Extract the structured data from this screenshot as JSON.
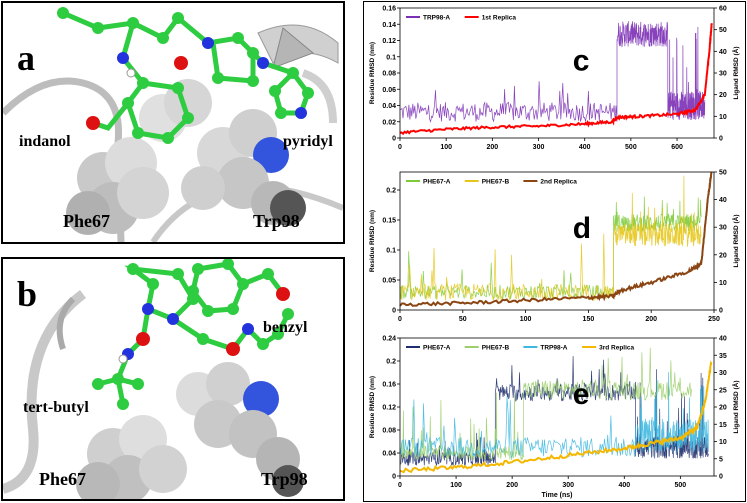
{
  "panels": {
    "a": {
      "letter": "a",
      "labels": {
        "indanol": "indanol",
        "pyridyl": "pyridyl",
        "phe": "Phe67",
        "trp": "Trp98"
      }
    },
    "b": {
      "letter": "b",
      "labels": {
        "benzyl": "benzyl",
        "tert_butyl": "tert-butyl",
        "phe": "Phe67",
        "trp": "Trp98"
      }
    }
  },
  "colors": {
    "carbon": "#2ecc40",
    "oxygen": "#dd1111",
    "nitrogen": "#2233dd",
    "ribbon": "#c8c8c8",
    "sphere": "#d9d9d9"
  },
  "chart_data": [
    {
      "type": "line",
      "panel_letter": "c",
      "x_ticks": [
        0,
        100,
        200,
        300,
        400,
        500,
        600
      ],
      "xlim": [
        0,
        680
      ],
      "xlabel": "",
      "ylabel": "Residue RMSD (nm)",
      "ylim": [
        0,
        0.16
      ],
      "y_ticks": [
        "0",
        "0.02",
        "0.04",
        "0.06",
        "0.08",
        "0.1",
        "0.12",
        "0.14",
        "0.16"
      ],
      "ylabel_right": "Ligand RMSD (Å)",
      "ylim_right": [
        0,
        60
      ],
      "y_ticks_right": [
        "0",
        "10",
        "20",
        "30",
        "40",
        "50",
        "60"
      ],
      "legend_position": "top-left",
      "series": [
        {
          "name": "TRP98-A",
          "axis": "left",
          "color": "#7b2fb5",
          "segments": [
            {
              "x": [
                0,
                470
              ],
              "base": 0.032,
              "amp": 0.012,
              "spikes": 0.02
            },
            {
              "x": [
                470,
                580
              ],
              "base": 0.128,
              "amp": 0.016,
              "spikes": 0.0
            },
            {
              "x": [
                580,
                660
              ],
              "base": 0.04,
              "amp": 0.018,
              "spikes": 0.05
            }
          ]
        },
        {
          "name": "1st Replica",
          "axis": "right",
          "color": "#ff0000",
          "points": [
            [
              0,
              2.5
            ],
            [
              100,
              4
            ],
            [
              200,
              5
            ],
            [
              300,
              5.5
            ],
            [
              400,
              6.5
            ],
            [
              460,
              7.5
            ],
            [
              470,
              9.5
            ],
            [
              520,
              10
            ],
            [
              600,
              11
            ],
            [
              640,
              13
            ],
            [
              660,
              20
            ],
            [
              670,
              40
            ],
            [
              675,
              53
            ]
          ]
        }
      ]
    },
    {
      "type": "line",
      "panel_letter": "d",
      "x_ticks": [
        0,
        50,
        100,
        150,
        200,
        250
      ],
      "xlim": [
        0,
        250
      ],
      "xlabel": "",
      "ylabel": "Residue RMSD (nm)",
      "ylim": [
        0,
        0.23
      ],
      "y_ticks": [
        "0",
        "0.05",
        "0.1",
        "0.15",
        "0.2"
      ],
      "ylabel_right": "Ligand RMSD (Å)",
      "ylim_right": [
        0,
        50
      ],
      "y_ticks_right": [
        "0",
        "10",
        "20",
        "30",
        "40",
        "50"
      ],
      "legend_position": "top-left",
      "series": [
        {
          "name": "PHE67-A",
          "axis": "left",
          "color": "#7ecb3a",
          "segments": [
            {
              "x": [
                0,
                170
              ],
              "base": 0.03,
              "amp": 0.012,
              "spikes": 0.03
            },
            {
              "x": [
                170,
                240
              ],
              "base": 0.145,
              "amp": 0.015,
              "spikes": 0.02
            }
          ]
        },
        {
          "name": "PHE67-B",
          "axis": "left",
          "color": "#e6c619",
          "segments": [
            {
              "x": [
                0,
                170
              ],
              "base": 0.03,
              "amp": 0.014,
              "spikes": 0.05
            },
            {
              "x": [
                170,
                240
              ],
              "base": 0.125,
              "amp": 0.02,
              "spikes": 0.04
            }
          ]
        },
        {
          "name": "2nd Replica",
          "axis": "right",
          "color": "#8b4513",
          "points": [
            [
              0,
              2
            ],
            [
              50,
              2.5
            ],
            [
              100,
              3.5
            ],
            [
              150,
              4.5
            ],
            [
              170,
              5
            ],
            [
              175,
              7
            ],
            [
              200,
              10
            ],
            [
              230,
              14
            ],
            [
              240,
              17
            ],
            [
              245,
              40
            ],
            [
              248,
              50
            ]
          ]
        }
      ]
    },
    {
      "type": "line",
      "panel_letter": "e",
      "x_ticks": [
        0,
        100,
        200,
        300,
        400,
        500
      ],
      "xlim": [
        0,
        560
      ],
      "xlabel": "Time (ns)",
      "ylabel": "Residue RMSD (nm)",
      "ylim": [
        0,
        0.24
      ],
      "y_ticks": [
        "0",
        "0.04",
        "0.08",
        "0.12",
        "0.16",
        "0.2",
        "0.24"
      ],
      "ylabel_right": "Ligand RMSD (Å)",
      "ylim_right": [
        0,
        40
      ],
      "y_ticks_right": [
        "0",
        "5",
        "10",
        "15",
        "20",
        "25",
        "30",
        "35",
        "40"
      ],
      "legend_position": "top",
      "series": [
        {
          "name": "PHE67-A",
          "axis": "left",
          "color": "#1f2f6e",
          "segments": [
            {
              "x": [
                0,
                170
              ],
              "base": 0.03,
              "amp": 0.012,
              "spikes": 0.02
            },
            {
              "x": [
                170,
                420
              ],
              "base": 0.145,
              "amp": 0.015,
              "spikes": 0.03
            },
            {
              "x": [
                420,
                550
              ],
              "base": 0.05,
              "amp": 0.02,
              "spikes": 0.06
            }
          ]
        },
        {
          "name": "PHE67-B",
          "axis": "left",
          "color": "#9ccf6b",
          "segments": [
            {
              "x": [
                0,
                220
              ],
              "base": 0.04,
              "amp": 0.012,
              "spikes": 0.06
            },
            {
              "x": [
                220,
                520
              ],
              "base": 0.15,
              "amp": 0.018,
              "spikes": 0.03
            }
          ]
        },
        {
          "name": "TRP98-A",
          "axis": "left",
          "color": "#3fb8e0",
          "segments": [
            {
              "x": [
                0,
                420
              ],
              "base": 0.05,
              "amp": 0.018,
              "spikes": 0.04
            },
            {
              "x": [
                420,
                550
              ],
              "base": 0.07,
              "amp": 0.03,
              "spikes": 0.06
            }
          ]
        },
        {
          "name": "3rd Replica",
          "axis": "right",
          "color": "#f5b800",
          "points": [
            [
              0,
              1.5
            ],
            [
              100,
              2.5
            ],
            [
              200,
              4
            ],
            [
              300,
              6
            ],
            [
              400,
              8
            ],
            [
              450,
              9.5
            ],
            [
              500,
              11
            ],
            [
              530,
              14
            ],
            [
              545,
              22
            ],
            [
              555,
              33
            ]
          ]
        }
      ]
    }
  ]
}
